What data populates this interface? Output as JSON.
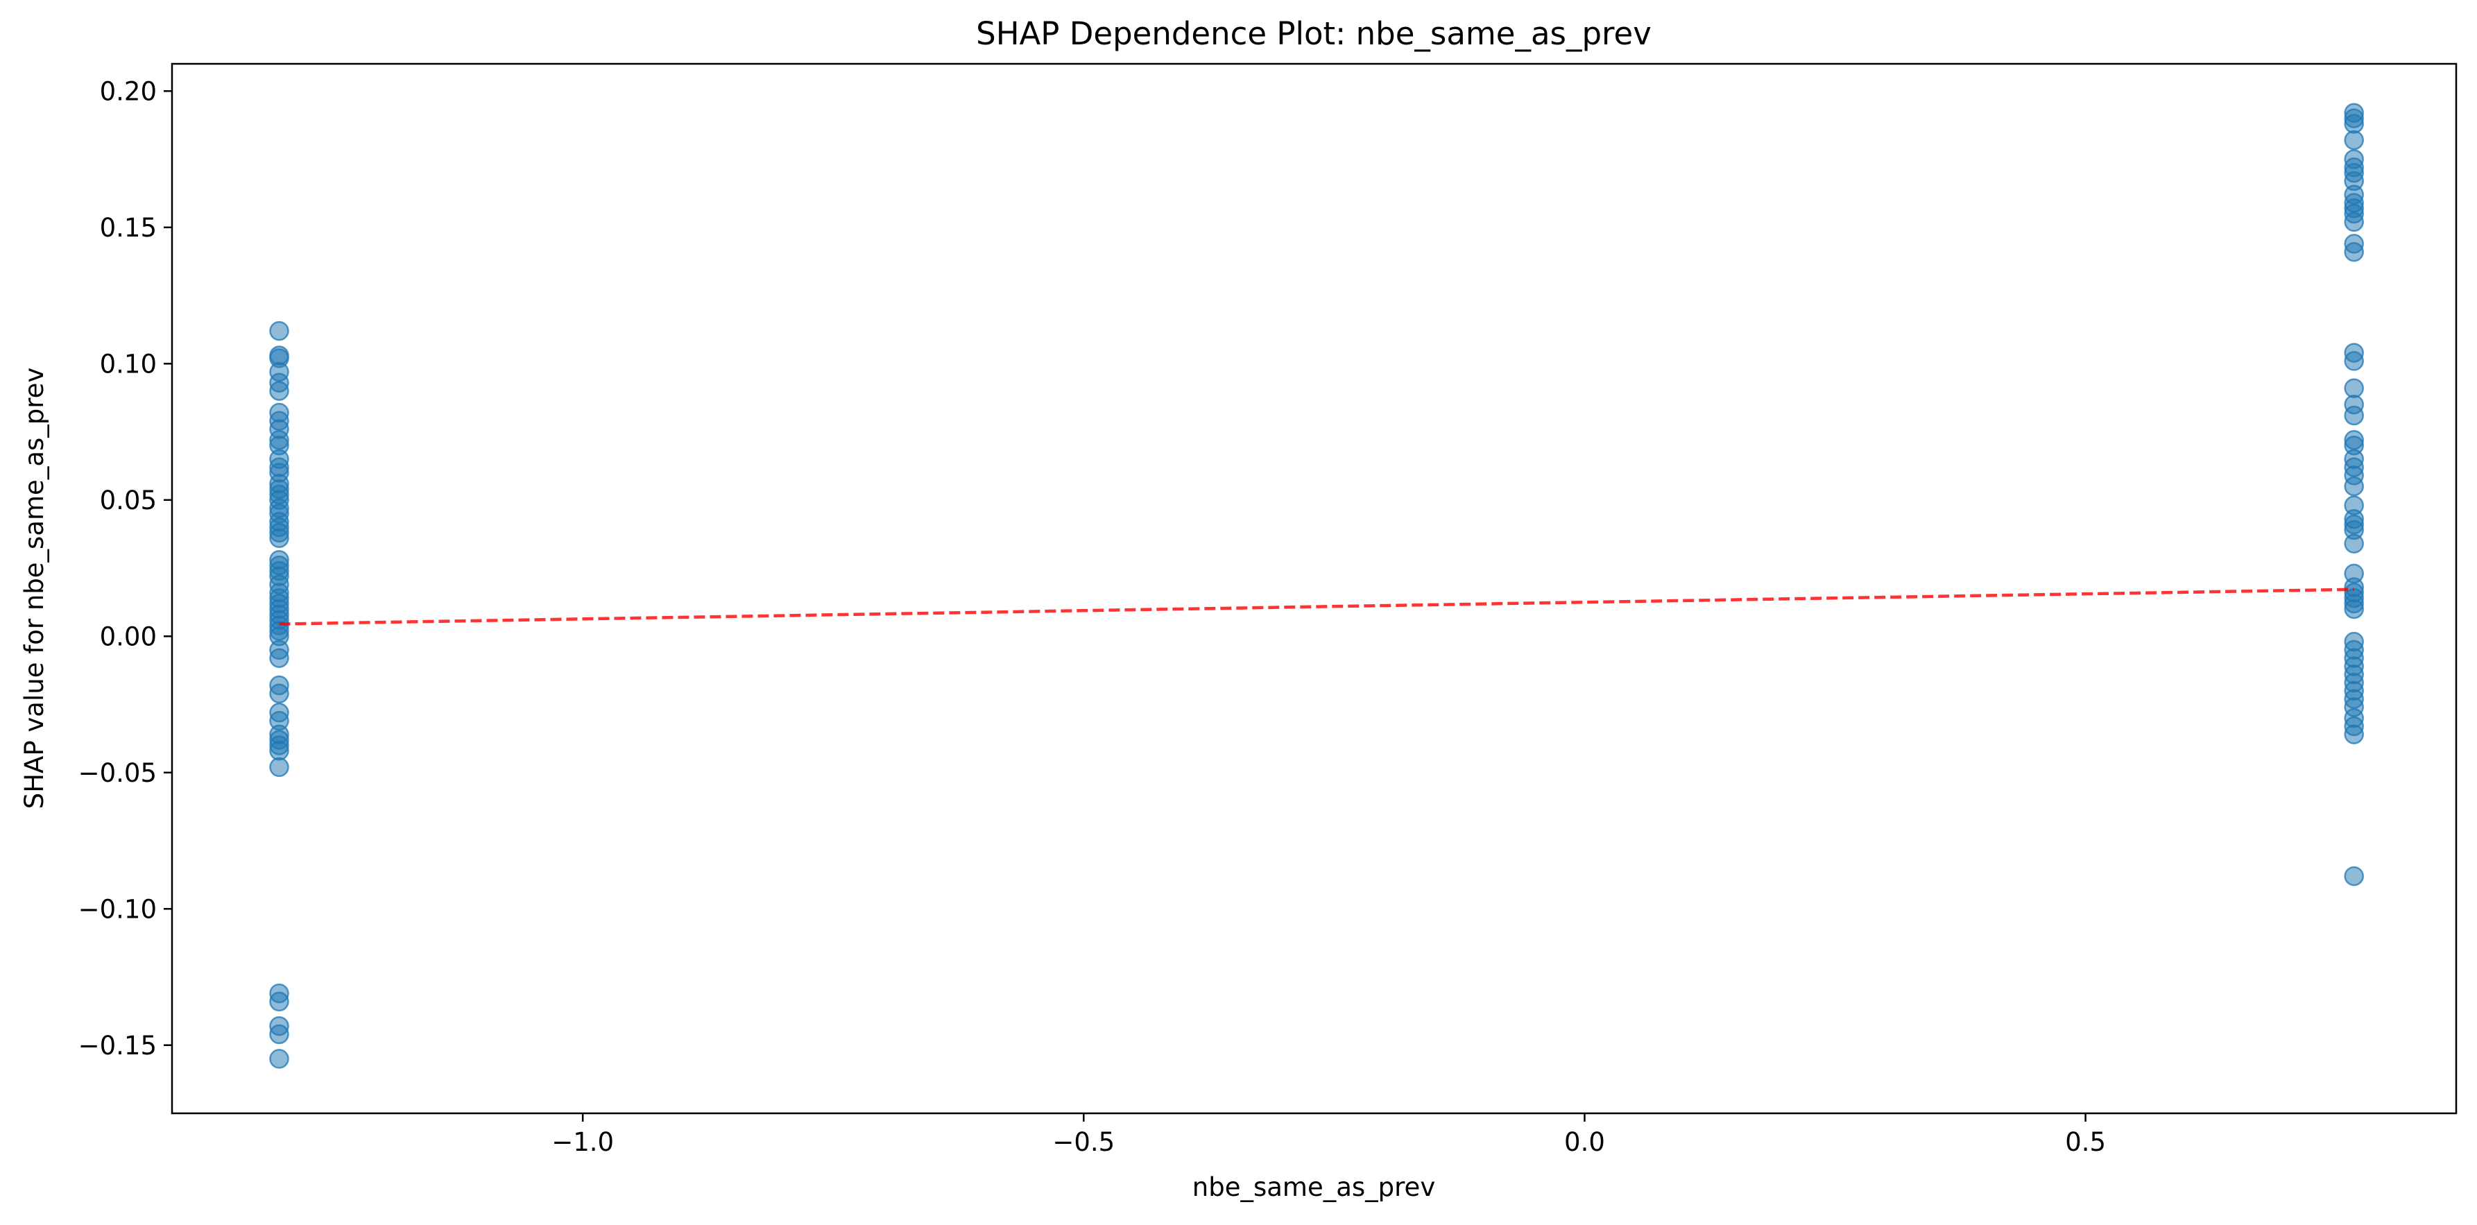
{
  "chart_data": {
    "type": "scatter",
    "title": "SHAP Dependence Plot: nbe_same_as_prev",
    "xlabel": "nbe_same_as_prev",
    "ylabel": "SHAP value for nbe_same_as_prev",
    "xlim": [
      -1.41,
      0.87
    ],
    "ylim": [
      -0.175,
      0.21
    ],
    "xticks": [
      -1.0,
      -0.5,
      0.0,
      0.5
    ],
    "xtick_labels": [
      "−1.0",
      "−0.5",
      "0.0",
      "0.5"
    ],
    "yticks": [
      -0.15,
      -0.1,
      -0.05,
      0.0,
      0.05,
      0.1,
      0.15,
      0.2
    ],
    "ytick_labels": [
      "−0.15",
      "−0.10",
      "−0.05",
      "0.00",
      "0.05",
      "0.10",
      "0.15",
      "0.20"
    ],
    "grid": false,
    "legend": "none",
    "series": [
      {
        "marker_color": "#1f77b4",
        "marker_alpha": 0.5,
        "points": [
          [
            -1.303,
            0.112
          ],
          [
            -1.303,
            0.103
          ],
          [
            -1.303,
            0.102
          ],
          [
            -1.303,
            0.097
          ],
          [
            -1.303,
            0.093
          ],
          [
            -1.303,
            0.09
          ],
          [
            -1.303,
            0.082
          ],
          [
            -1.303,
            0.079
          ],
          [
            -1.303,
            0.076
          ],
          [
            -1.303,
            0.072
          ],
          [
            -1.303,
            0.07
          ],
          [
            -1.303,
            0.065
          ],
          [
            -1.303,
            0.062
          ],
          [
            -1.303,
            0.06
          ],
          [
            -1.303,
            0.056
          ],
          [
            -1.303,
            0.054
          ],
          [
            -1.303,
            0.052
          ],
          [
            -1.303,
            0.05
          ],
          [
            -1.303,
            0.047
          ],
          [
            -1.303,
            0.045
          ],
          [
            -1.303,
            0.042
          ],
          [
            -1.303,
            0.04
          ],
          [
            -1.303,
            0.038
          ],
          [
            -1.303,
            0.036
          ],
          [
            -1.303,
            0.028
          ],
          [
            -1.303,
            0.026
          ],
          [
            -1.303,
            0.024
          ],
          [
            -1.303,
            0.022
          ],
          [
            -1.303,
            0.019
          ],
          [
            -1.303,
            0.016
          ],
          [
            -1.303,
            0.014
          ],
          [
            -1.303,
            0.012
          ],
          [
            -1.303,
            0.01
          ],
          [
            -1.303,
            0.008
          ],
          [
            -1.303,
            0.006
          ],
          [
            -1.303,
            0.004
          ],
          [
            -1.303,
            0.002
          ],
          [
            -1.303,
            0.0
          ],
          [
            -1.303,
            -0.005
          ],
          [
            -1.303,
            -0.008
          ],
          [
            -1.303,
            -0.018
          ],
          [
            -1.303,
            -0.021
          ],
          [
            -1.303,
            -0.028
          ],
          [
            -1.303,
            -0.031
          ],
          [
            -1.303,
            -0.036
          ],
          [
            -1.303,
            -0.038
          ],
          [
            -1.303,
            -0.04
          ],
          [
            -1.303,
            -0.042
          ],
          [
            -1.303,
            -0.048
          ],
          [
            -1.303,
            -0.131
          ],
          [
            -1.303,
            -0.134
          ],
          [
            -1.303,
            -0.143
          ],
          [
            -1.303,
            -0.146
          ],
          [
            -1.303,
            -0.155
          ],
          [
            0.768,
            0.192
          ],
          [
            0.768,
            0.19
          ],
          [
            0.768,
            0.188
          ],
          [
            0.768,
            0.182
          ],
          [
            0.768,
            0.175
          ],
          [
            0.768,
            0.172
          ],
          [
            0.768,
            0.17
          ],
          [
            0.768,
            0.167
          ],
          [
            0.768,
            0.162
          ],
          [
            0.768,
            0.159
          ],
          [
            0.768,
            0.157
          ],
          [
            0.768,
            0.155
          ],
          [
            0.768,
            0.152
          ],
          [
            0.768,
            0.144
          ],
          [
            0.768,
            0.141
          ],
          [
            0.768,
            0.104
          ],
          [
            0.768,
            0.101
          ],
          [
            0.768,
            0.091
          ],
          [
            0.768,
            0.085
          ],
          [
            0.768,
            0.081
          ],
          [
            0.768,
            0.072
          ],
          [
            0.768,
            0.07
          ],
          [
            0.768,
            0.065
          ],
          [
            0.768,
            0.062
          ],
          [
            0.768,
            0.059
          ],
          [
            0.768,
            0.055
          ],
          [
            0.768,
            0.048
          ],
          [
            0.768,
            0.043
          ],
          [
            0.768,
            0.041
          ],
          [
            0.768,
            0.039
          ],
          [
            0.768,
            0.034
          ],
          [
            0.768,
            0.023
          ],
          [
            0.768,
            0.018
          ],
          [
            0.768,
            0.016
          ],
          [
            0.768,
            0.014
          ],
          [
            0.768,
            0.012
          ],
          [
            0.768,
            0.01
          ],
          [
            0.768,
            -0.002
          ],
          [
            0.768,
            -0.005
          ],
          [
            0.768,
            -0.008
          ],
          [
            0.768,
            -0.011
          ],
          [
            0.768,
            -0.014
          ],
          [
            0.768,
            -0.017
          ],
          [
            0.768,
            -0.02
          ],
          [
            0.768,
            -0.023
          ],
          [
            0.768,
            -0.026
          ],
          [
            0.768,
            -0.03
          ],
          [
            0.768,
            -0.033
          ],
          [
            0.768,
            -0.036
          ],
          [
            0.768,
            -0.088
          ]
        ]
      }
    ],
    "trend_line": {
      "style": "dashed",
      "color": "#ff0000",
      "alpha": 0.8,
      "points": [
        [
          -1.303,
          0.0045
        ],
        [
          0.768,
          0.0172
        ]
      ]
    }
  }
}
